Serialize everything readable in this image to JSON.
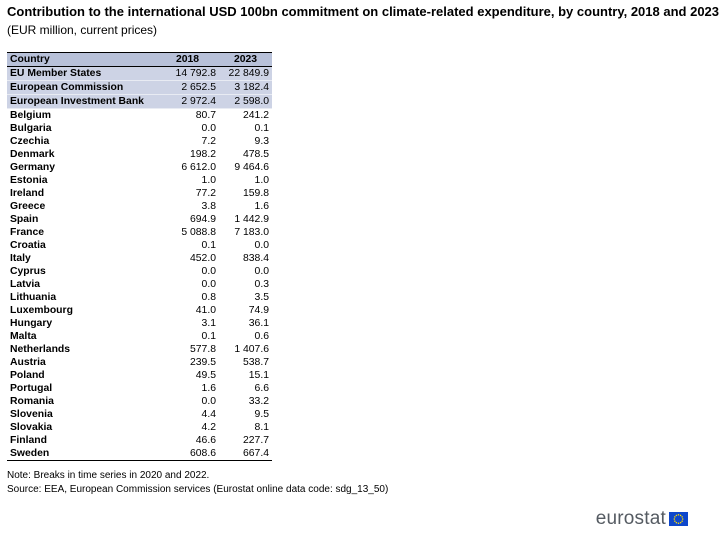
{
  "chart_data": {
    "type": "table",
    "title": "Contribution to the international USD 100bn commitment on climate-related expenditure, by country, 2018 and 2023",
    "subtitle": "(EUR million, current prices)",
    "columns": [
      "Country",
      "2018",
      "2023"
    ],
    "rows": [
      {
        "country": "EU Member States",
        "y2018": "14 792.8",
        "y2023": "22 849.9",
        "highlight": true
      },
      {
        "country": "European Commission",
        "y2018": "2 652.5",
        "y2023": "3 182.4",
        "highlight": true
      },
      {
        "country": "European Investment Bank",
        "y2018": "2 972.4",
        "y2023": "2 598.0",
        "highlight": true
      },
      {
        "country": "Belgium",
        "y2018": "80.7",
        "y2023": "241.2"
      },
      {
        "country": "Bulgaria",
        "y2018": "0.0",
        "y2023": "0.1"
      },
      {
        "country": "Czechia",
        "y2018": "7.2",
        "y2023": "9.3"
      },
      {
        "country": "Denmark",
        "y2018": "198.2",
        "y2023": "478.5"
      },
      {
        "country": "Germany",
        "y2018": "6 612.0",
        "y2023": "9 464.6"
      },
      {
        "country": "Estonia",
        "y2018": "1.0",
        "y2023": "1.0"
      },
      {
        "country": "Ireland",
        "y2018": "77.2",
        "y2023": "159.8"
      },
      {
        "country": "Greece",
        "y2018": "3.8",
        "y2023": "1.6"
      },
      {
        "country": "Spain",
        "y2018": "694.9",
        "y2023": "1 442.9"
      },
      {
        "country": "France",
        "y2018": "5 088.8",
        "y2023": "7 183.0"
      },
      {
        "country": "Croatia",
        "y2018": "0.1",
        "y2023": "0.0"
      },
      {
        "country": "Italy",
        "y2018": "452.0",
        "y2023": "838.4"
      },
      {
        "country": "Cyprus",
        "y2018": "0.0",
        "y2023": "0.0"
      },
      {
        "country": "Latvia",
        "y2018": "0.0",
        "y2023": "0.3"
      },
      {
        "country": "Lithuania",
        "y2018": "0.8",
        "y2023": "3.5"
      },
      {
        "country": "Luxembourg",
        "y2018": "41.0",
        "y2023": "74.9"
      },
      {
        "country": "Hungary",
        "y2018": "3.1",
        "y2023": "36.1"
      },
      {
        "country": "Malta",
        "y2018": "0.1",
        "y2023": "0.6"
      },
      {
        "country": "Netherlands",
        "y2018": "577.8",
        "y2023": "1 407.6"
      },
      {
        "country": "Austria",
        "y2018": "239.5",
        "y2023": "538.7"
      },
      {
        "country": "Poland",
        "y2018": "49.5",
        "y2023": "15.1"
      },
      {
        "country": "Portugal",
        "y2018": "1.6",
        "y2023": "6.6"
      },
      {
        "country": "Romania",
        "y2018": "0.0",
        "y2023": "33.2"
      },
      {
        "country": "Slovenia",
        "y2018": "4.4",
        "y2023": "9.5"
      },
      {
        "country": "Slovakia",
        "y2018": "4.2",
        "y2023": "8.1"
      },
      {
        "country": "Finland",
        "y2018": "46.6",
        "y2023": "227.7"
      },
      {
        "country": "Sweden",
        "y2018": "608.6",
        "y2023": "667.4"
      }
    ]
  },
  "footer": {
    "note": "Note: Breaks in time series in 2020 and 2022.",
    "source": "Source: EEA, European Commission services (Eurostat online data code: sdg_13_50)"
  },
  "logo": {
    "text": "eurostat",
    "flag_color": "#0e47cb",
    "star_color": "#ffde00"
  },
  "colors": {
    "header_bg": "#b8c1d9",
    "highlight_bg": "#cdd3e5"
  }
}
